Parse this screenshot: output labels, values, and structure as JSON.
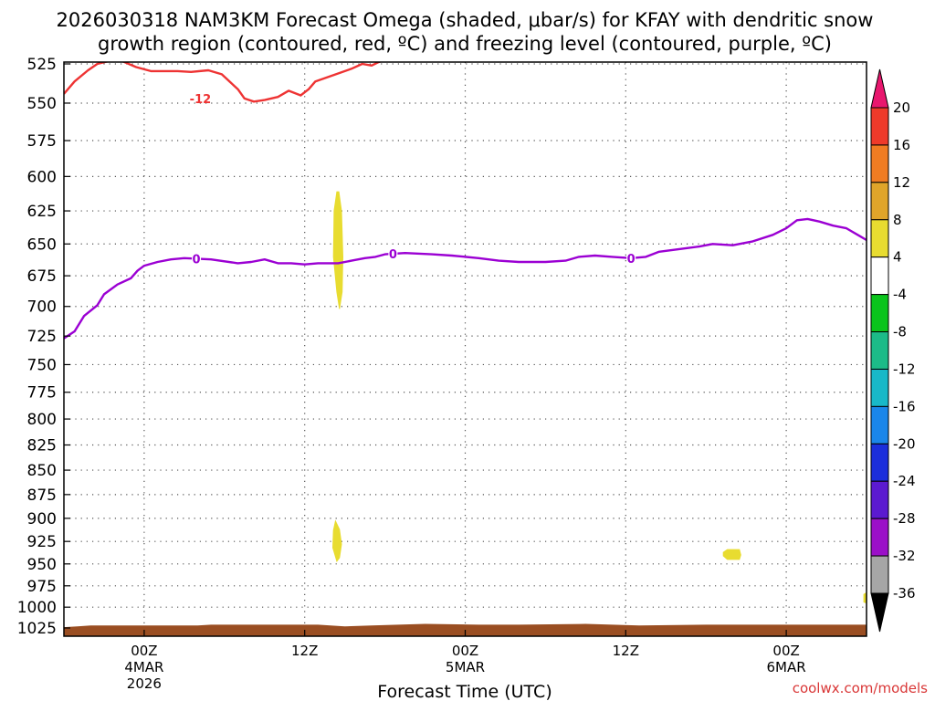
{
  "chart_data": {
    "type": "time-height",
    "title_lines": [
      "2026030318 NAM3KM Forecast Omega (shaded, μbar/s) for KFAY with dendritic snow",
      "growth region (contoured, red, ºC) and freezing level (contoured, purple, ºC)"
    ],
    "xlabel": "Forecast Time (UTC)",
    "credit": "coolwx.com/models",
    "x_range_hours": [
      -6,
      54
    ],
    "x_ticks": [
      {
        "hour": 0,
        "lines": [
          "00Z",
          "4MAR",
          "2026"
        ]
      },
      {
        "hour": 12,
        "lines": [
          "12Z"
        ]
      },
      {
        "hour": 24,
        "lines": [
          "00Z",
          "5MAR"
        ]
      },
      {
        "hour": 36,
        "lines": [
          "12Z"
        ]
      },
      {
        "hour": 48,
        "lines": [
          "00Z",
          "6MAR"
        ]
      }
    ],
    "y_range_mb": [
      525,
      1030
    ],
    "y_ticks": [
      525,
      550,
      575,
      600,
      625,
      650,
      675,
      700,
      725,
      750,
      775,
      800,
      825,
      850,
      875,
      900,
      925,
      950,
      975,
      1000,
      1025
    ],
    "grid": true,
    "colorbar": {
      "labels": [
        "20",
        "16",
        "12",
        "8",
        "4",
        "-4",
        "-8",
        "-12",
        "-16",
        "-20",
        "-24",
        "-28",
        "-32",
        "-36"
      ],
      "bins": [
        {
          "color": "#e8176e",
          "shape": "top-arrow"
        },
        {
          "color": "#ee3a2a"
        },
        {
          "color": "#f07c22"
        },
        {
          "color": "#e0a52a"
        },
        {
          "color": "#e8dc30"
        },
        {
          "color": "#ffffff"
        },
        {
          "color": "#0ac41c"
        },
        {
          "color": "#1cbb88"
        },
        {
          "color": "#18b8c8"
        },
        {
          "color": "#1a86ea"
        },
        {
          "color": "#1b2edb"
        },
        {
          "color": "#5b1ad0"
        },
        {
          "color": "#9b10c8"
        },
        {
          "color": "#a6a6a6"
        },
        {
          "color": "#000000",
          "shape": "bottom-arrow"
        }
      ]
    },
    "dgz_contour": {
      "name": "dendritic growth region",
      "color": "#ee3333",
      "label": "-12",
      "label_point": {
        "hour": 4.2,
        "mb": 547
      },
      "points": [
        [
          -6,
          544
        ],
        [
          -5.2,
          536
        ],
        [
          -4.2,
          529
        ],
        [
          -3.5,
          525
        ],
        [
          -2,
          522
        ],
        [
          -0.6,
          527
        ],
        [
          0.5,
          529.5
        ],
        [
          2.5,
          529.5
        ],
        [
          3.5,
          530
        ],
        [
          4.8,
          529
        ],
        [
          5.8,
          531.5
        ],
        [
          6.5,
          537
        ],
        [
          7,
          541
        ],
        [
          7.5,
          547
        ],
        [
          8.2,
          549
        ],
        [
          9,
          548
        ],
        [
          10,
          546
        ],
        [
          10.8,
          542
        ],
        [
          11.7,
          545
        ],
        [
          12.3,
          541
        ],
        [
          12.8,
          536
        ],
        [
          14.5,
          531
        ],
        [
          15.5,
          528
        ],
        [
          16.3,
          525
        ],
        [
          17,
          526
        ],
        [
          17.5,
          524
        ],
        [
          18.5,
          521
        ]
      ]
    },
    "freezing_level": {
      "name": "freezing level",
      "color": "#9b00d3",
      "label": "0",
      "label_hours": [
        3.9,
        18.6,
        36.4
      ],
      "points": [
        [
          -6,
          727
        ],
        [
          -5.2,
          721
        ],
        [
          -4.5,
          708
        ],
        [
          -3.5,
          699
        ],
        [
          -3,
          690
        ],
        [
          -2,
          682
        ],
        [
          -1,
          677
        ],
        [
          -0.5,
          671
        ],
        [
          0,
          667
        ],
        [
          1,
          664
        ],
        [
          2,
          662
        ],
        [
          3,
          661
        ],
        [
          5,
          662
        ],
        [
          7,
          665
        ],
        [
          8,
          664
        ],
        [
          9,
          662
        ],
        [
          10,
          665
        ],
        [
          11,
          665
        ],
        [
          12,
          666
        ],
        [
          13,
          665
        ],
        [
          14.5,
          665
        ],
        [
          15.5,
          663
        ],
        [
          16.5,
          661
        ],
        [
          17.3,
          660
        ],
        [
          18,
          658
        ],
        [
          19.5,
          657
        ],
        [
          21.5,
          658
        ],
        [
          23,
          659
        ],
        [
          25,
          661
        ],
        [
          26.5,
          663
        ],
        [
          28,
          664
        ],
        [
          30,
          664
        ],
        [
          31.5,
          663
        ],
        [
          32.5,
          660
        ],
        [
          33.7,
          659
        ],
        [
          35,
          660
        ],
        [
          36.4,
          661
        ],
        [
          37.5,
          660
        ],
        [
          38.5,
          656
        ],
        [
          40,
          654
        ],
        [
          41.5,
          652
        ],
        [
          42.5,
          650
        ],
        [
          44,
          651
        ],
        [
          45.5,
          648
        ],
        [
          47,
          643
        ],
        [
          48,
          638
        ],
        [
          48.8,
          632
        ],
        [
          49.6,
          631
        ],
        [
          50.5,
          633
        ],
        [
          51.5,
          636
        ],
        [
          52.5,
          638
        ],
        [
          53.5,
          644
        ],
        [
          54,
          647
        ]
      ]
    },
    "omega_features": [
      {
        "name": "omega-area-1",
        "color": "#e8dc30",
        "value_bin": "4 to 8",
        "outline": [
          [
            14.55,
            611
          ],
          [
            14.75,
            625
          ],
          [
            14.85,
            660
          ],
          [
            14.8,
            688
          ],
          [
            14.6,
            702
          ],
          [
            14.4,
            688
          ],
          [
            14.15,
            660
          ],
          [
            14.2,
            625
          ],
          [
            14.4,
            611
          ]
        ]
      },
      {
        "name": "omega-area-2",
        "color": "#e8dc30",
        "value_bin": "4 to 8",
        "outline": [
          [
            14.3,
            903
          ],
          [
            14.6,
            912
          ],
          [
            14.75,
            928
          ],
          [
            14.6,
            943
          ],
          [
            14.4,
            947
          ],
          [
            14.1,
            932
          ],
          [
            14.15,
            913
          ]
        ]
      },
      {
        "name": "omega-area-3",
        "color": "#e8dc30",
        "value_bin": "4 to 8",
        "outline": [
          [
            43.6,
            934
          ],
          [
            44.5,
            934
          ],
          [
            44.6,
            940
          ],
          [
            44.5,
            945
          ],
          [
            43.6,
            945
          ],
          [
            43.3,
            941
          ],
          [
            43.3,
            937
          ]
        ]
      },
      {
        "name": "omega-area-4",
        "color": "#e8dc30",
        "value_bin": "4 to 8",
        "outline": [
          [
            53.8,
            985
          ],
          [
            54,
            983
          ],
          [
            54,
            995
          ],
          [
            53.8,
            994
          ]
        ]
      }
    ],
    "surface": {
      "name": "ground / surface pressure",
      "color": "#9a4e22",
      "points": [
        [
          -6,
          1024
        ],
        [
          -5,
          1023
        ],
        [
          -4,
          1022
        ],
        [
          0,
          1022
        ],
        [
          4,
          1022
        ],
        [
          5,
          1021
        ],
        [
          13,
          1021
        ],
        [
          15,
          1023
        ],
        [
          17,
          1022
        ],
        [
          21,
          1020
        ],
        [
          25,
          1021
        ],
        [
          28,
          1021
        ],
        [
          33,
          1020
        ],
        [
          37,
          1022
        ],
        [
          42,
          1021
        ],
        [
          50,
          1021
        ],
        [
          54,
          1021
        ]
      ]
    }
  }
}
